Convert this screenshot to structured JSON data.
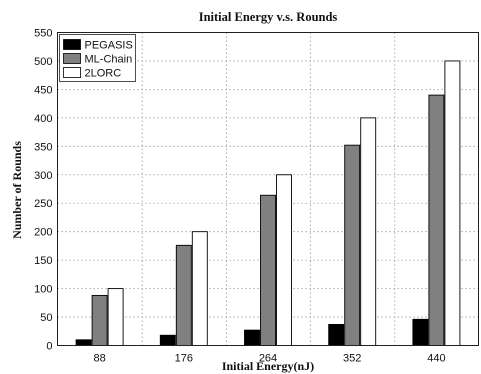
{
  "chart_data": {
    "type": "bar",
    "title": "Initial Energy v.s. Rounds",
    "xlabel": "Initial Energy(nJ)",
    "ylabel": "Number of Rounds",
    "categories": [
      "88",
      "176",
      "264",
      "352",
      "440"
    ],
    "ylim": [
      0,
      550
    ],
    "yticks": [
      0,
      50,
      100,
      150,
      200,
      250,
      300,
      350,
      400,
      450,
      500,
      550
    ],
    "grid": true,
    "legend_position": "top-left",
    "series": [
      {
        "name": "PEGASIS",
        "values": [
          10,
          18,
          27,
          37,
          46
        ],
        "color": "#000000"
      },
      {
        "name": "ML-Chain",
        "values": [
          88,
          176,
          264,
          352,
          440
        ],
        "color": "#808080"
      },
      {
        "name": "2LORC",
        "values": [
          100,
          200,
          300,
          400,
          500
        ],
        "color": "#ffffff"
      }
    ]
  }
}
